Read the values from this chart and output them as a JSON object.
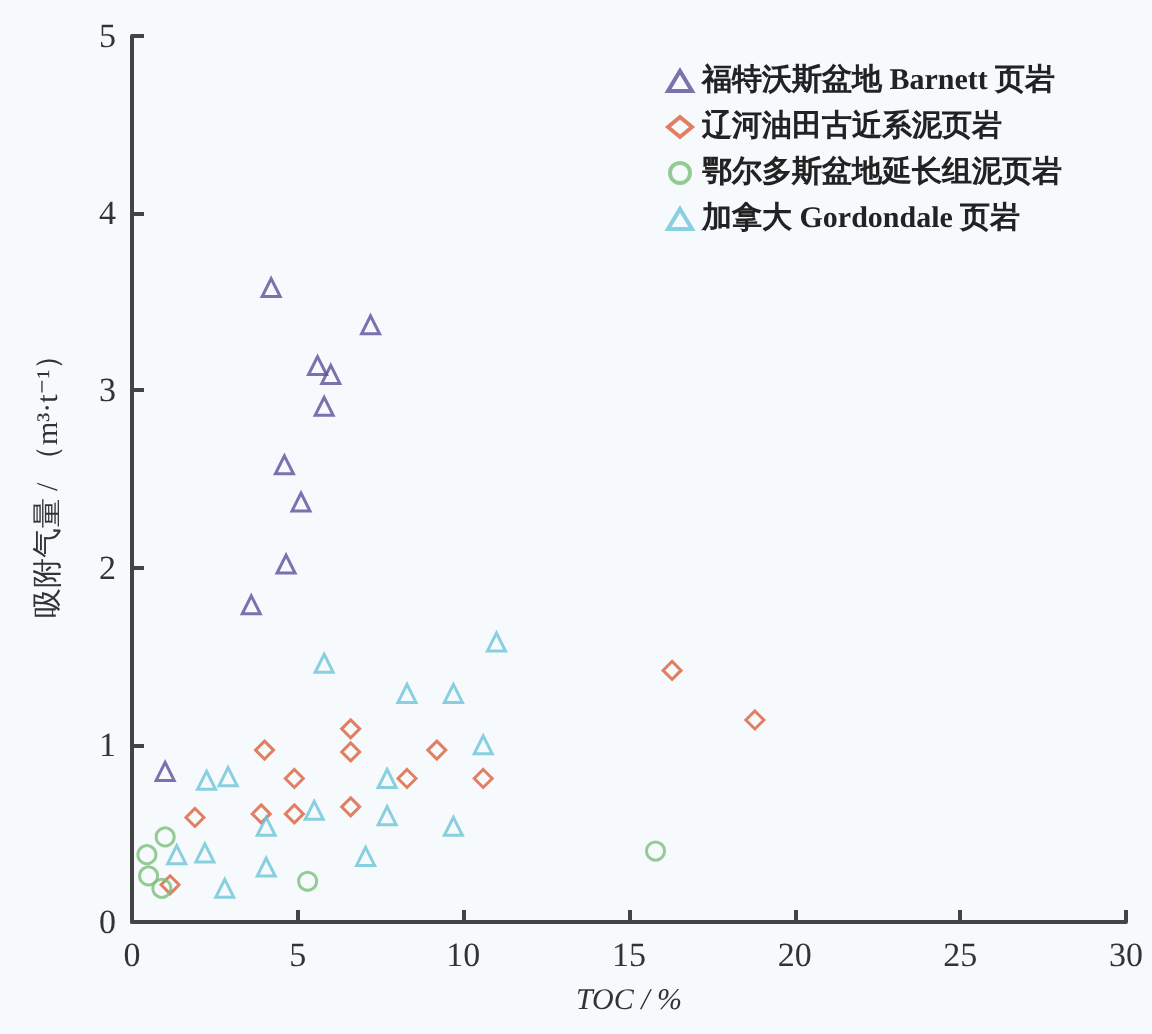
{
  "chart_data": {
    "type": "scatter",
    "xlabel": "TOC / %",
    "ylabel": "吸附气量 / （m³·t⁻¹）",
    "xlim": [
      0,
      30
    ],
    "ylim": [
      0,
      5
    ],
    "xticks": [
      0,
      5,
      10,
      15,
      20,
      25,
      30
    ],
    "yticks": [
      0,
      1,
      2,
      3,
      4,
      5
    ],
    "grid": false,
    "legend": "top right",
    "series": [
      {
        "name": "福特沃斯盆地 Barnett 页岩",
        "color": "#5a4f9a",
        "marker": "triangle",
        "x": [
          4.2,
          7.2,
          5.6,
          6.0,
          5.8,
          4.6,
          5.1,
          4.65,
          3.6,
          1.0
        ],
        "values": [
          3.58,
          3.37,
          3.14,
          3.09,
          2.91,
          2.58,
          2.37,
          2.02,
          1.79,
          0.85
        ]
      },
      {
        "name": "辽河油田古近系泥页岩",
        "color": "#d9603b",
        "marker": "diamond",
        "x": [
          6.6,
          4.0,
          9.2,
          8.3,
          10.6,
          4.9,
          6.6,
          1.9,
          3.9,
          4.9,
          6.6,
          1.15,
          16.3,
          18.8
        ],
        "values": [
          1.09,
          0.97,
          0.97,
          0.81,
          0.81,
          0.81,
          0.96,
          0.59,
          0.61,
          0.61,
          0.65,
          0.21,
          1.42,
          1.14
        ]
      },
      {
        "name": "鄂尔多斯盆地延长组泥页岩",
        "color": "#7bbf7b",
        "marker": "circle",
        "x": [
          1.0,
          0.45,
          0.5,
          0.9,
          5.3,
          15.8
        ],
        "values": [
          0.48,
          0.38,
          0.26,
          0.19,
          0.23,
          0.4
        ]
      },
      {
        "name": "加拿大 Gordondale 页岩",
        "color": "#6cc4d8",
        "marker": "triangle",
        "x": [
          11.0,
          5.8,
          8.3,
          9.7,
          10.6,
          2.25,
          2.9,
          7.7,
          5.5,
          4.05,
          7.7,
          9.7,
          1.35,
          2.2,
          4.05,
          7.05,
          2.8
        ],
        "values": [
          1.58,
          1.46,
          1.29,
          1.29,
          1.0,
          0.8,
          0.82,
          0.81,
          0.63,
          0.54,
          0.6,
          0.54,
          0.38,
          0.39,
          0.31,
          0.37,
          0.19
        ]
      }
    ]
  }
}
